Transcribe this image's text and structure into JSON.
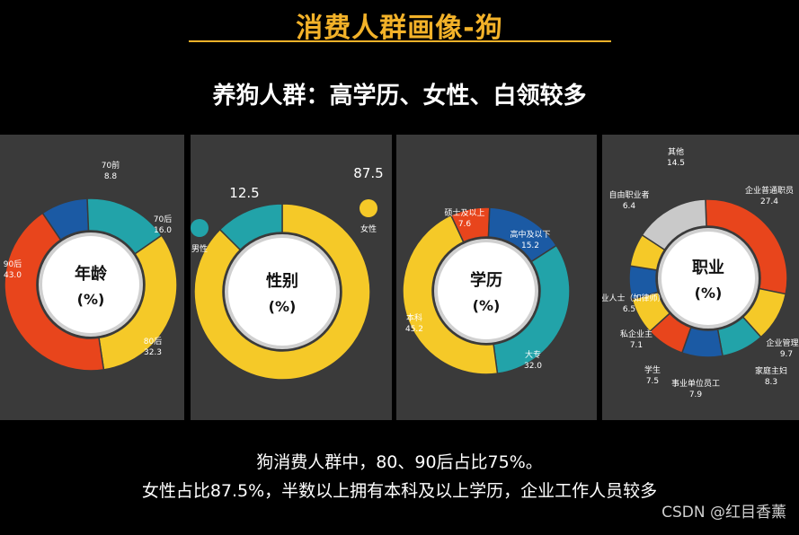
{
  "header": {
    "title": "消费人群画像-狗",
    "subtitle": "养狗人群：高学历、女性、白领较多"
  },
  "footer": {
    "line1": "狗消费人群中，80、90后占比75%。",
    "line2": "女性占比87.5%，半数以上拥有本科及以上学历，企业工作人员较多",
    "watermark": "CSDN @红目香薰"
  },
  "colors": {
    "red": "#e8451c",
    "blue": "#1b5aa4",
    "teal": "#22a3a9",
    "yellow": "#f5c928",
    "gray": "#c9c9c9",
    "panel": "#3a3a3a"
  },
  "chart_data": [
    {
      "type": "pie",
      "center_label": "年龄",
      "unit_label": "(%)",
      "slices": [
        {
          "label": "70前",
          "value": 8.8,
          "color": "blue"
        },
        {
          "label": "70后",
          "value": 16.0,
          "color": "teal"
        },
        {
          "label": "80后",
          "value": 32.3,
          "color": "yellow"
        },
        {
          "label": "90后",
          "value": 43.0,
          "color": "red"
        }
      ]
    },
    {
      "type": "pie",
      "center_label": "性别",
      "unit_label": "(%)",
      "slices": [
        {
          "label": "女性",
          "value": 87.5,
          "color": "yellow"
        },
        {
          "label": "男性",
          "value": 12.5,
          "color": "teal"
        }
      ]
    },
    {
      "type": "pie",
      "center_label": "学历",
      "unit_label": "(%)",
      "slices": [
        {
          "label": "硕士及以上",
          "value": 7.6,
          "color": "red"
        },
        {
          "label": "高中及以下",
          "value": 15.2,
          "color": "blue"
        },
        {
          "label": "大专",
          "value": 32.0,
          "color": "teal"
        },
        {
          "label": "本科",
          "value": 45.2,
          "color": "yellow"
        }
      ]
    },
    {
      "type": "pie",
      "center_label": "职业",
      "unit_label": "(%)",
      "slices": [
        {
          "label": "企业普通职员",
          "value": 27.4,
          "color": "red"
        },
        {
          "label": "企业管理层",
          "value": 9.7,
          "color": "yellow"
        },
        {
          "label": "家庭主妇",
          "value": 8.3,
          "color": "teal"
        },
        {
          "label": "事业单位员工",
          "value": 7.9,
          "color": "blue"
        },
        {
          "label": "学生",
          "value": 7.5,
          "color": "red"
        },
        {
          "label": "私企业主",
          "value": 7.1,
          "color": "yellow"
        },
        {
          "label": "专业人士（如律师）",
          "value": 6.5,
          "color": "blue"
        },
        {
          "label": "自由职业者",
          "value": 6.4,
          "color": "yellow"
        },
        {
          "label": "其他",
          "value": 14.5,
          "color": "gray"
        }
      ]
    }
  ]
}
